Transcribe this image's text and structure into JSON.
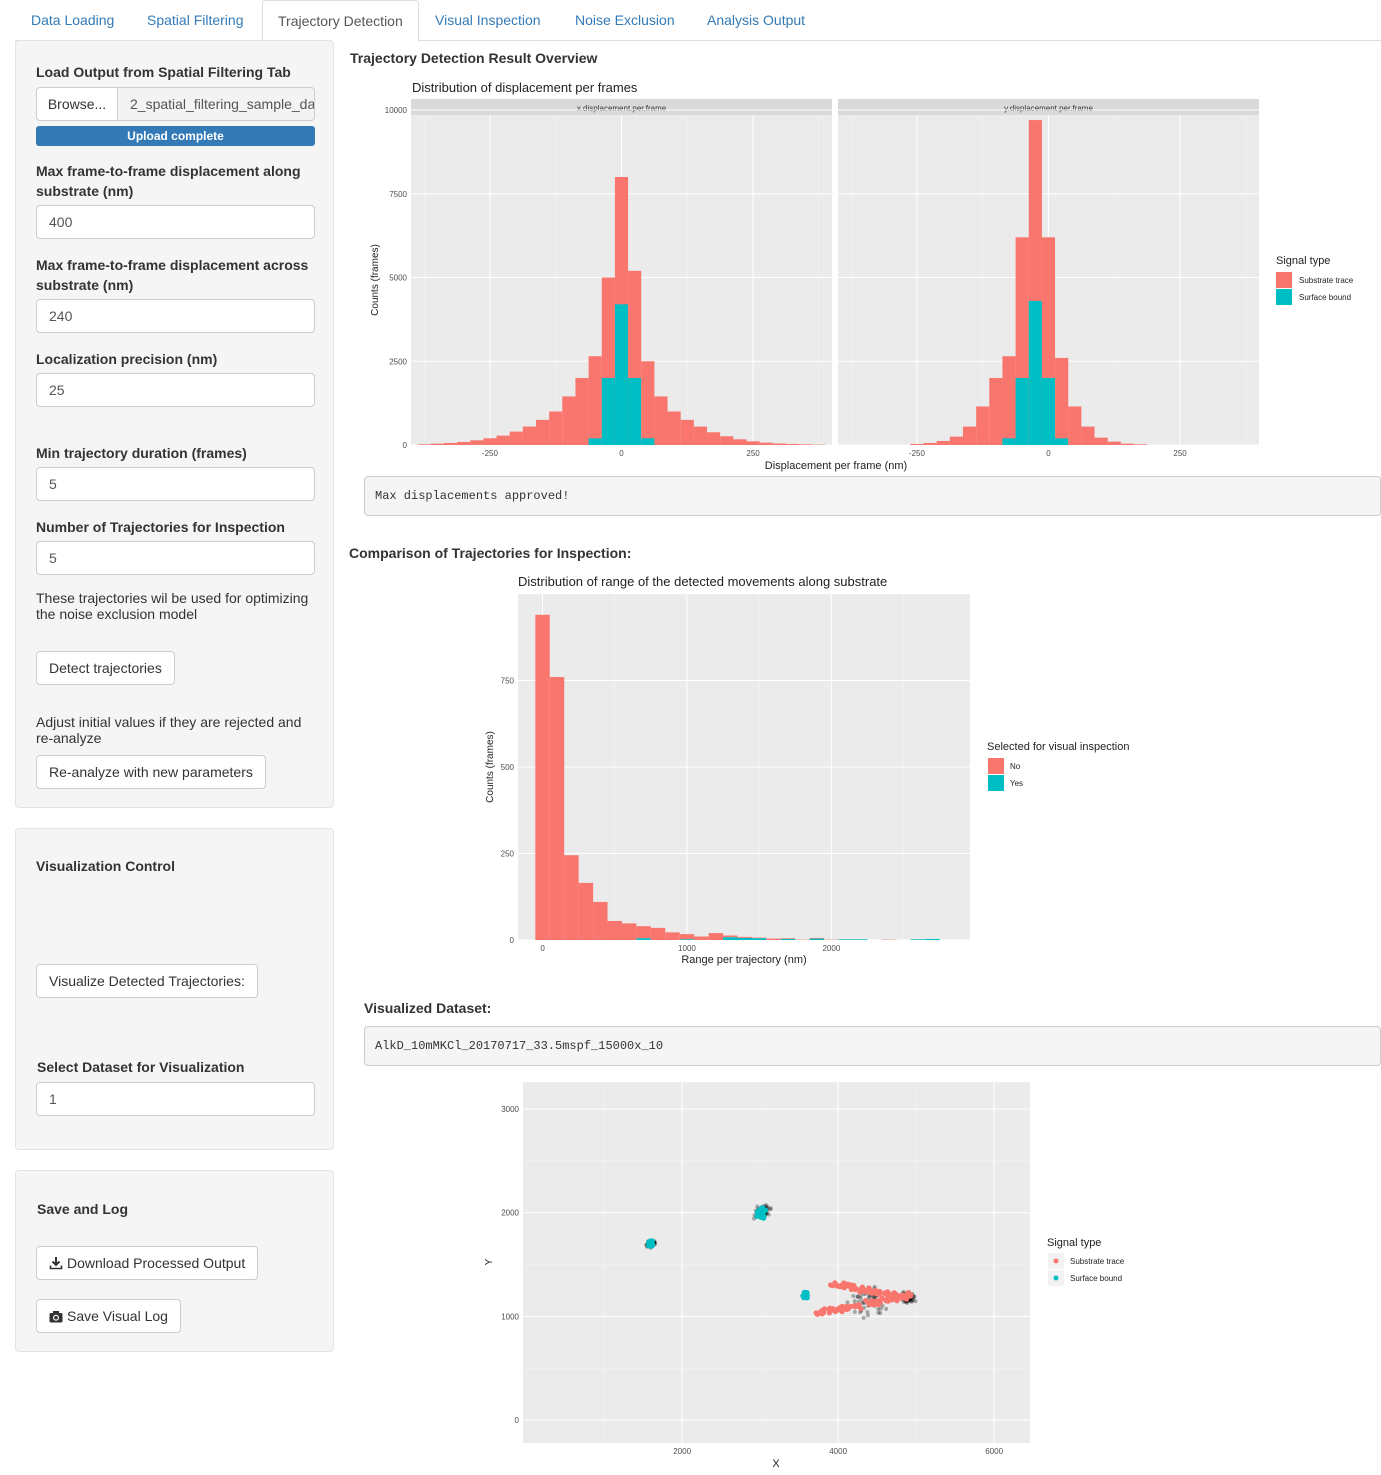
{
  "tabs": [
    "Data Loading",
    "Spatial Filtering",
    "Trajectory Detection",
    "Visual Inspection",
    "Noise Exclusion",
    "Analysis Output"
  ],
  "active_tab": "Trajectory Detection",
  "sidebar": {
    "load_label": "Load Output from Spatial Filtering Tab",
    "browse_label": "Browse...",
    "file_name": "2_spatial_filtering_sample_da",
    "upload_status": "Upload complete",
    "max_along_label": "Max frame-to-frame displacement along substrate (nm)",
    "max_along_value": "400",
    "max_across_label": "Max frame-to-frame displacement across substrate (nm)",
    "max_across_value": "240",
    "loc_precision_label": "Localization precision (nm)",
    "loc_precision_value": "25",
    "min_duration_label": "Min trajectory duration (frames)",
    "min_duration_value": "5",
    "num_traj_label": "Number of Trajectories for Inspection",
    "num_traj_value": "5",
    "num_traj_help": "These trajectories wil be used for optimizing the noise exclusion model",
    "detect_button": "Detect trajectories",
    "adjust_help": "Adjust initial values if they are rejected and re-analyze",
    "reanalyze_button": "Re-analyze with new parameters"
  },
  "viz_panel": {
    "title": "Visualization Control",
    "visualize_button": "Visualize Detected Trajectories:",
    "dataset_label": "Select Dataset for Visualization",
    "dataset_value": "1"
  },
  "save_panel": {
    "title": "Save and Log",
    "download_button": "Download Processed Output",
    "save_log_button": "Save Visual Log"
  },
  "main": {
    "overview_title": "Trajectory Detection Result Overview",
    "approved_text": "Max displacements approved!",
    "comparison_title": "Comparison of Trajectories for Inspection:",
    "visualized_title": "Visualized Dataset:",
    "dataset_name": "AlkD_10mMKCl_20170717_33.5mspf_15000x_10"
  },
  "colors": {
    "substrate": "#F8766D",
    "surface": "#00BFC4",
    "panel_bg": "#EBEBEB",
    "accent": "#337ab7"
  },
  "chart_data": [
    {
      "type": "bar",
      "title": "Distribution of displacement per frames",
      "facets": [
        "x.displacement.per.frame",
        "y.displacement.per.frame"
      ],
      "xlabel": "Displacement per frame (nm)",
      "ylabel": "Counts (frames)",
      "x_ticks": [
        -250,
        0,
        250
      ],
      "y_ticks": [
        0,
        2500,
        5000,
        7500,
        10000
      ],
      "xlim": [
        -400,
        400
      ],
      "ylim": [
        0,
        10000
      ],
      "legend_title": "Signal type",
      "series_names": [
        "Substrate trace",
        "Surface bound"
      ],
      "bin_width": 25,
      "panels": [
        {
          "facet": "x.displacement.per.frame",
          "bins": [
            {
              "x": -375,
              "total": 20,
              "surface": 0
            },
            {
              "x": -350,
              "total": 40,
              "surface": 0
            },
            {
              "x": -325,
              "total": 60,
              "surface": 0
            },
            {
              "x": -300,
              "total": 90,
              "surface": 0
            },
            {
              "x": -275,
              "total": 140,
              "surface": 0
            },
            {
              "x": -250,
              "total": 200,
              "surface": 0
            },
            {
              "x": -225,
              "total": 280,
              "surface": 0
            },
            {
              "x": -200,
              "total": 400,
              "surface": 0
            },
            {
              "x": -175,
              "total": 550,
              "surface": 0
            },
            {
              "x": -150,
              "total": 750,
              "surface": 0
            },
            {
              "x": -125,
              "total": 1000,
              "surface": 0
            },
            {
              "x": -100,
              "total": 1450,
              "surface": 0
            },
            {
              "x": -75,
              "total": 2000,
              "surface": 0
            },
            {
              "x": -50,
              "total": 2650,
              "surface": 200
            },
            {
              "x": -25,
              "total": 5000,
              "surface": 2000
            },
            {
              "x": 0,
              "total": 8000,
              "surface": 4200
            },
            {
              "x": 25,
              "total": 5200,
              "surface": 2000
            },
            {
              "x": 50,
              "total": 2500,
              "surface": 200
            },
            {
              "x": 75,
              "total": 1450,
              "surface": 0
            },
            {
              "x": 100,
              "total": 1000,
              "surface": 0
            },
            {
              "x": 125,
              "total": 750,
              "surface": 0
            },
            {
              "x": 150,
              "total": 550,
              "surface": 0
            },
            {
              "x": 175,
              "total": 380,
              "surface": 0
            },
            {
              "x": 200,
              "total": 260,
              "surface": 0
            },
            {
              "x": 225,
              "total": 170,
              "surface": 0
            },
            {
              "x": 250,
              "total": 110,
              "surface": 0
            },
            {
              "x": 275,
              "total": 70,
              "surface": 0
            },
            {
              "x": 300,
              "total": 45,
              "surface": 0
            },
            {
              "x": 325,
              "total": 30,
              "surface": 0
            },
            {
              "x": 350,
              "total": 20,
              "surface": 0
            },
            {
              "x": 375,
              "total": 10,
              "surface": 0
            }
          ]
        },
        {
          "facet": "y.displacement.per.frame",
          "bins": [
            {
              "x": -250,
              "total": 30,
              "surface": 0
            },
            {
              "x": -225,
              "total": 60,
              "surface": 0
            },
            {
              "x": -200,
              "total": 120,
              "surface": 0
            },
            {
              "x": -175,
              "total": 250,
              "surface": 0
            },
            {
              "x": -150,
              "total": 550,
              "surface": 0
            },
            {
              "x": -125,
              "total": 1150,
              "surface": 0
            },
            {
              "x": -100,
              "total": 2000,
              "surface": 0
            },
            {
              "x": -75,
              "total": 2650,
              "surface": 200
            },
            {
              "x": -50,
              "total": 6200,
              "surface": 2000
            },
            {
              "x": -25,
              "total": 9700,
              "surface": 4300
            },
            {
              "x": 0,
              "total": 6200,
              "surface": 2000
            },
            {
              "x": 25,
              "total": 2600,
              "surface": 200
            },
            {
              "x": 50,
              "total": 1150,
              "surface": 0
            },
            {
              "x": 75,
              "total": 550,
              "surface": 0
            },
            {
              "x": 100,
              "total": 220,
              "surface": 0
            },
            {
              "x": 125,
              "total": 100,
              "surface": 0
            },
            {
              "x": 150,
              "total": 40,
              "surface": 0
            },
            {
              "x": 175,
              "total": 20,
              "surface": 0
            }
          ]
        }
      ]
    },
    {
      "type": "bar",
      "title": "Distribution of range of the detected movements along substrate",
      "xlabel": "Range per trajectory (nm)",
      "ylabel": "Counts (frames)",
      "x_ticks": [
        0,
        1000,
        2000
      ],
      "y_ticks": [
        0,
        250,
        500,
        750
      ],
      "xlim": [
        -170,
        2960
      ],
      "ylim": [
        0,
        1000
      ],
      "legend_title": "Selected for visual inspection",
      "series_names": [
        "No",
        "Yes"
      ],
      "bin_width": 100,
      "bins": [
        {
          "x": 0,
          "no": 940,
          "yes": 0
        },
        {
          "x": 100,
          "no": 760,
          "yes": 0
        },
        {
          "x": 200,
          "no": 245,
          "yes": 0
        },
        {
          "x": 300,
          "no": 165,
          "yes": 0
        },
        {
          "x": 400,
          "no": 110,
          "yes": 0
        },
        {
          "x": 500,
          "no": 55,
          "yes": 0
        },
        {
          "x": 600,
          "no": 48,
          "yes": 0
        },
        {
          "x": 700,
          "no": 35,
          "yes": 5
        },
        {
          "x": 800,
          "no": 35,
          "yes": 0
        },
        {
          "x": 900,
          "no": 22,
          "yes": 0
        },
        {
          "x": 1000,
          "no": 15,
          "yes": 2
        },
        {
          "x": 1100,
          "no": 10,
          "yes": 0
        },
        {
          "x": 1200,
          "no": 20,
          "yes": 0
        },
        {
          "x": 1300,
          "no": 5,
          "yes": 8
        },
        {
          "x": 1400,
          "no": 3,
          "yes": 6
        },
        {
          "x": 1500,
          "no": 2,
          "yes": 5
        },
        {
          "x": 1600,
          "no": 4,
          "yes": 0
        },
        {
          "x": 1700,
          "no": 2,
          "yes": 3
        },
        {
          "x": 1800,
          "no": 1,
          "yes": 0
        },
        {
          "x": 1900,
          "no": 2,
          "yes": 4
        },
        {
          "x": 2000,
          "no": 1,
          "yes": 0
        },
        {
          "x": 2100,
          "no": 0,
          "yes": 2
        },
        {
          "x": 2200,
          "no": 0,
          "yes": 2
        },
        {
          "x": 2300,
          "no": 0,
          "yes": 0
        },
        {
          "x": 2400,
          "no": 1,
          "yes": 0
        },
        {
          "x": 2500,
          "no": 0,
          "yes": 0
        },
        {
          "x": 2600,
          "no": 0,
          "yes": 2
        },
        {
          "x": 2700,
          "no": 0,
          "yes": 3
        }
      ]
    },
    {
      "type": "scatter",
      "xlabel": "X",
      "ylabel": "Y",
      "x_ticks": [
        2000,
        4000,
        6000
      ],
      "y_ticks": [
        0,
        1000,
        2000,
        3000
      ],
      "xlim": [
        -40,
        6460
      ],
      "ylim": [
        -220,
        3260
      ],
      "legend_title": "Signal type",
      "series_names": [
        "Substrate trace",
        "Surface bound"
      ],
      "surface_clusters": [
        {
          "x": 1600,
          "y": 1700,
          "spread": 40
        },
        {
          "x": 3020,
          "y": 2000,
          "spread": 80
        },
        {
          "x": 3580,
          "y": 1210,
          "spread": 40
        }
      ],
      "substrate_traces": [
        {
          "x1": 3700,
          "y1": 1030,
          "x2": 4900,
          "y2": 1200
        },
        {
          "x1": 3900,
          "y1": 1320,
          "x2": 4950,
          "y2": 1170
        }
      ],
      "noise_clusters": [
        {
          "x": 3030,
          "y": 2010,
          "spread": 130
        },
        {
          "x": 1600,
          "y": 1700,
          "spread": 80
        },
        {
          "x": 4900,
          "y": 1180,
          "spread": 120
        },
        {
          "x": 4400,
          "y": 1150,
          "spread": 350
        }
      ]
    }
  ]
}
